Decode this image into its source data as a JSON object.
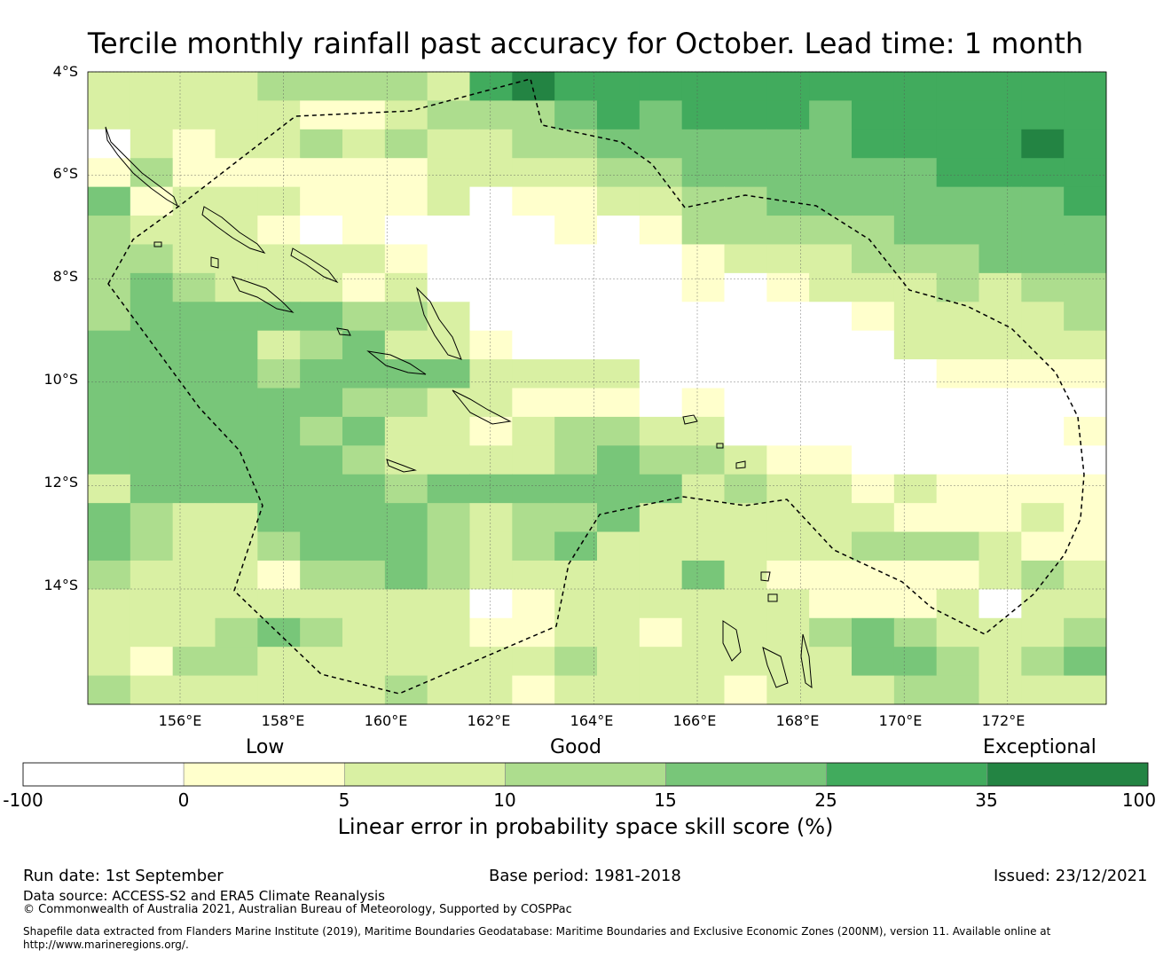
{
  "title": "Tercile monthly rainfall past accuracy for October. Lead time: 1 month",
  "map": {
    "lon_range": [
      154.2,
      174.0
    ],
    "lat_range": [
      -16.2,
      -4.0
    ],
    "lat_ticks": [
      "4°S",
      "6°S",
      "8°S",
      "10°S",
      "12°S",
      "14°S"
    ],
    "lon_ticks": [
      "156°E",
      "158°E",
      "160°E",
      "162°E",
      "164°E",
      "166°E",
      "168°E",
      "170°E",
      "172°E"
    ],
    "boundary_lines": "dashed",
    "grid": true
  },
  "categories": {
    "low": "Low",
    "good": "Good",
    "exceptional": "Exceptional"
  },
  "colorbar": {
    "ticks": [
      "-100",
      "0",
      "5",
      "10",
      "15",
      "25",
      "35",
      "100"
    ],
    "colors": [
      "#ffffff",
      "#ffffcc",
      "#d9f0a3",
      "#addd8e",
      "#78c679",
      "#41ab5d",
      "#238443"
    ],
    "label": "Linear error in probability space skill score (%)"
  },
  "footer": {
    "run_date": "Run date: 1st September",
    "base_period": "Base period: 1981-2018",
    "issued": "Issued: 23/12/2021",
    "data_source": "Data source: ACCESS-S2 and ERA5 Climate Reanalysis",
    "copyright": "© Commonwealth of Australia 2021, Australian Bureau of Meteorology, Supported by COSPPac",
    "shapefile_line1": "Shapefile data extracted from Flanders Marine Institute (2019), Maritime Boundaries Geodatabase: Maritime Boundaries and Exclusive Economic Zones (200NM), version 11. Available online at",
    "shapefile_line2": "http://www.marineregions.org/."
  }
}
